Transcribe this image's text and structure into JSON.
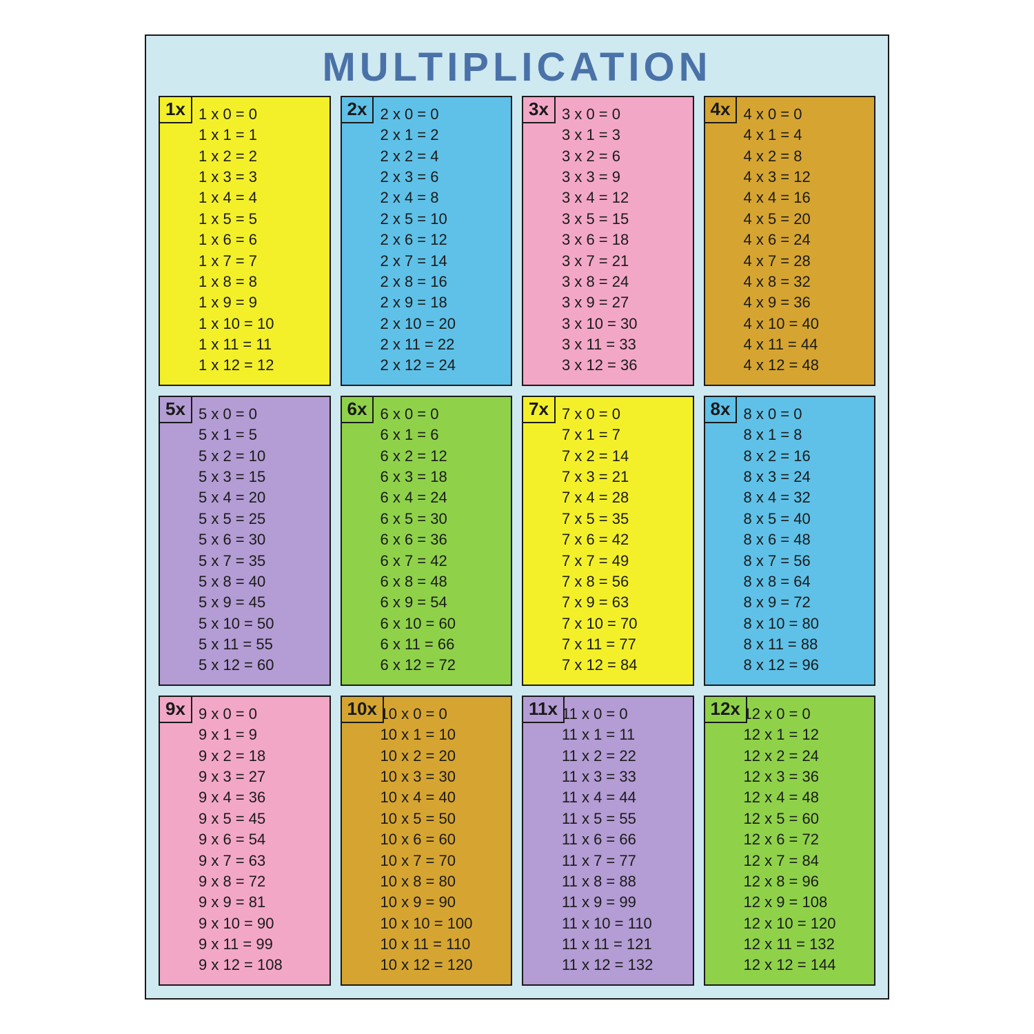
{
  "title": "MULTIPLICATION",
  "layout": {
    "cols": 4,
    "rows": 3
  },
  "style": {
    "page_background": "#ffffff",
    "poster_background": "#cfe9f1",
    "border_color": "#1a1a1a",
    "title_color": "#4a72a8",
    "title_fontsize": 58,
    "title_letter_spacing": 6,
    "fact_fontsize": 22,
    "tab_fontsize": 26,
    "font_family": "Comic Sans MS"
  },
  "colors": {
    "yellow": "#f3f02a",
    "blue": "#5fc1e8",
    "pink": "#f3a7c6",
    "ochre": "#d6a531",
    "purple": "#b49cd4",
    "green": "#8fd24a"
  },
  "tables": [
    {
      "label": "1x",
      "color_key": "yellow",
      "tab_color_key": "yellow",
      "n": 1,
      "range": [
        0,
        12
      ]
    },
    {
      "label": "2x",
      "color_key": "blue",
      "tab_color_key": "blue",
      "n": 2,
      "range": [
        0,
        12
      ]
    },
    {
      "label": "3x",
      "color_key": "pink",
      "tab_color_key": "pink",
      "n": 3,
      "range": [
        0,
        12
      ]
    },
    {
      "label": "4x",
      "color_key": "ochre",
      "tab_color_key": "ochre",
      "n": 4,
      "range": [
        0,
        12
      ]
    },
    {
      "label": "5x",
      "color_key": "purple",
      "tab_color_key": "purple",
      "n": 5,
      "range": [
        0,
        12
      ]
    },
    {
      "label": "6x",
      "color_key": "green",
      "tab_color_key": "green",
      "n": 6,
      "range": [
        0,
        12
      ]
    },
    {
      "label": "7x",
      "color_key": "yellow",
      "tab_color_key": "yellow",
      "n": 7,
      "range": [
        0,
        12
      ]
    },
    {
      "label": "8x",
      "color_key": "blue",
      "tab_color_key": "blue",
      "n": 8,
      "range": [
        0,
        12
      ]
    },
    {
      "label": "9x",
      "color_key": "pink",
      "tab_color_key": "pink",
      "n": 9,
      "range": [
        0,
        12
      ]
    },
    {
      "label": "10x",
      "color_key": "ochre",
      "tab_color_key": "ochre",
      "n": 10,
      "range": [
        0,
        12
      ]
    },
    {
      "label": "11x",
      "color_key": "purple",
      "tab_color_key": "purple",
      "n": 11,
      "range": [
        0,
        12
      ]
    },
    {
      "label": "12x",
      "color_key": "green",
      "tab_color_key": "green",
      "n": 12,
      "range": [
        0,
        12
      ]
    }
  ]
}
